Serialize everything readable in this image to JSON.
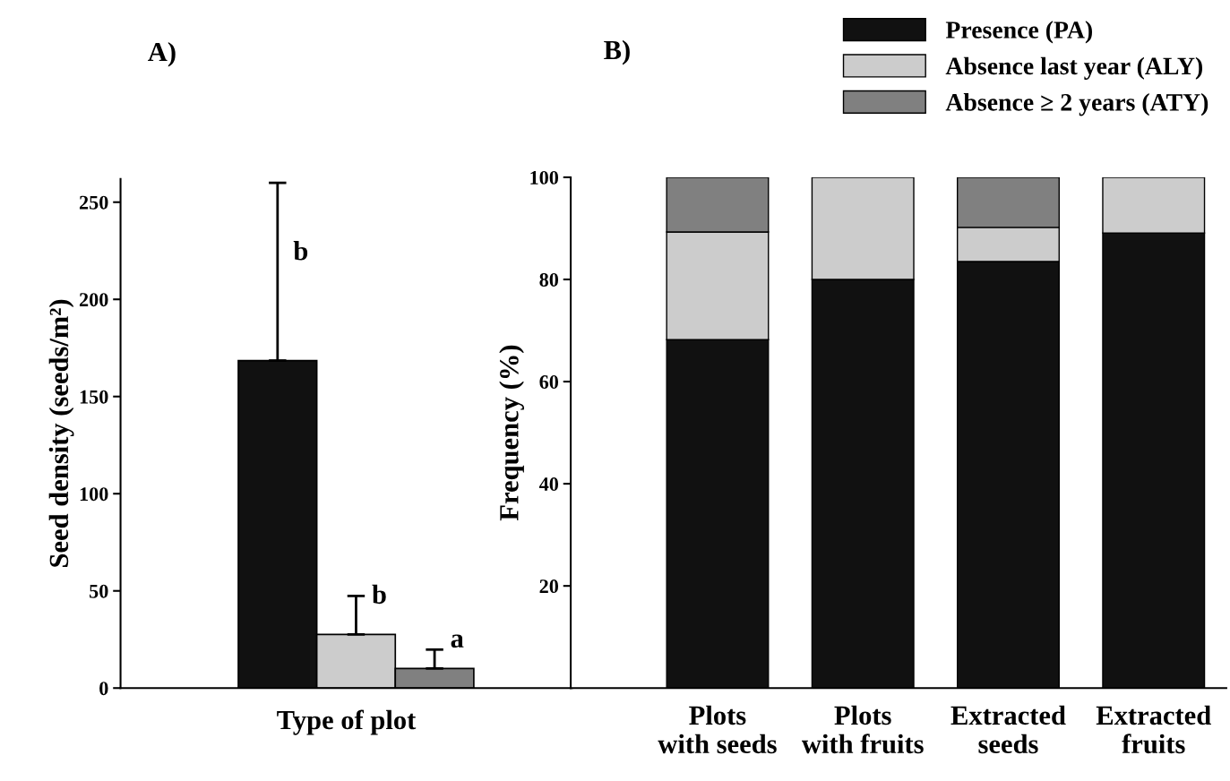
{
  "chart_data": [
    {
      "type": "bar",
      "title": "A)",
      "ylabel": "Seed density (seeds/m²)",
      "xlabel": "Type of plot",
      "categories": [
        null,
        null,
        null
      ],
      "values": [
        168.5,
        27.6,
        10.1
      ],
      "colors": [
        "#111111",
        "#cccccc",
        "#808080"
      ],
      "errors": [
        [
          168.5,
          260
        ],
        [
          27.6,
          47.4
        ],
        [
          10.1,
          19.8
        ]
      ],
      "ylim": [
        0,
        262
      ],
      "yticks": [
        0,
        50,
        100,
        150,
        200,
        250
      ],
      "grid": false,
      "legend": false,
      "annotations": [
        "b",
        "b",
        "a"
      ]
    },
    {
      "type": "bar",
      "title": "B)",
      "ylabel": "Frequency (%)",
      "stacked": true,
      "categories": [
        "Plots\nwith seeds",
        "Plots\nwith fruits",
        "Extracted\nseeds",
        "Extracted\nfruits"
      ],
      "ylim": [
        0,
        100
      ],
      "yticks": [
        20,
        40,
        60,
        80,
        100
      ],
      "grid": false,
      "legend": "top right",
      "series": [
        {
          "name": "Presence (PA)",
          "color": "#111111",
          "values": [
            68.2,
            80,
            83.5,
            89.1
          ]
        },
        {
          "name": "Absence last year (ALY)",
          "color": "#cccccc",
          "values": [
            21.1,
            20,
            6.7,
            10.9
          ]
        },
        {
          "name": "Absence ≥ 2 years (ATY)",
          "color": "#808080",
          "values": [
            10.7,
            null,
            9.8,
            null
          ]
        }
      ]
    }
  ]
}
